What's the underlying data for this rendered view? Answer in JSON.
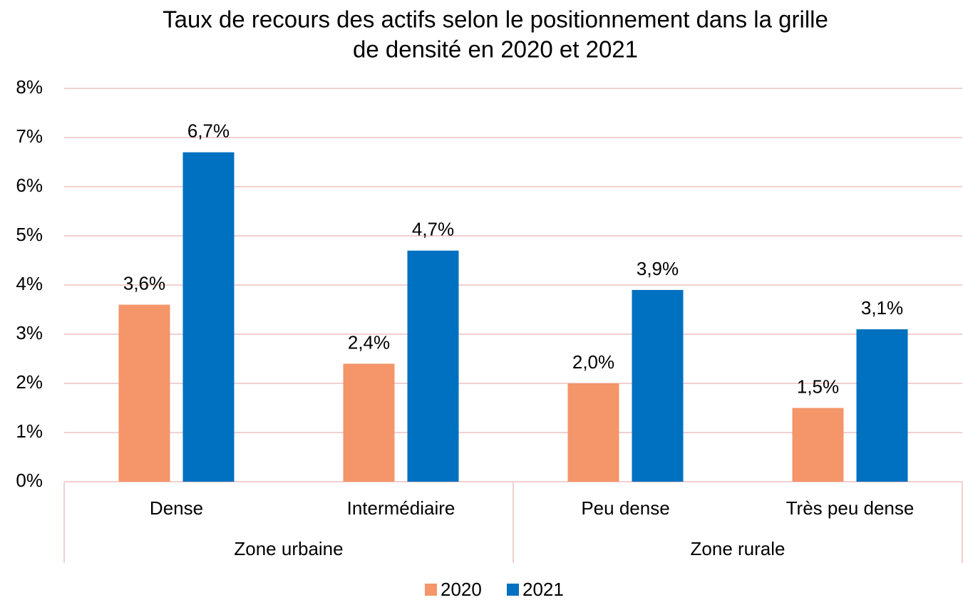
{
  "chart_data": {
    "type": "bar",
    "title": [
      "Taux de recours des actifs selon le positionnement dans la grille",
      "de densité en 2020 et 2021"
    ],
    "categories": [
      "Dense",
      "Intermédiaire",
      "Peu dense",
      "Très peu dense"
    ],
    "category_groups": [
      "Zone urbaine",
      "Zone urbaine",
      "Zone rurale",
      "Zone rurale"
    ],
    "series": [
      {
        "name": "2020",
        "color": "#F4956A",
        "values": [
          3.6,
          2.4,
          2.0,
          1.5
        ],
        "value_labels": [
          "3,6%",
          "2,4%",
          "2,0%",
          "1,5%"
        ]
      },
      {
        "name": "2021",
        "color": "#0070C0",
        "values": [
          6.7,
          4.7,
          3.9,
          3.1
        ],
        "value_labels": [
          "6,7%",
          "4,7%",
          "3,9%",
          "3,1%"
        ]
      }
    ],
    "ylim": [
      0,
      8
    ],
    "yticks": [
      {
        "value": 0,
        "label": "0%"
      },
      {
        "value": 1,
        "label": "1%"
      },
      {
        "value": 2,
        "label": "2%"
      },
      {
        "value": 3,
        "label": "3%"
      },
      {
        "value": 4,
        "label": "4%"
      },
      {
        "value": 5,
        "label": "5%"
      },
      {
        "value": 6,
        "label": "6%"
      },
      {
        "value": 7,
        "label": "7%"
      },
      {
        "value": 8,
        "label": "8%"
      }
    ],
    "grid": true,
    "legend": "bottom"
  }
}
